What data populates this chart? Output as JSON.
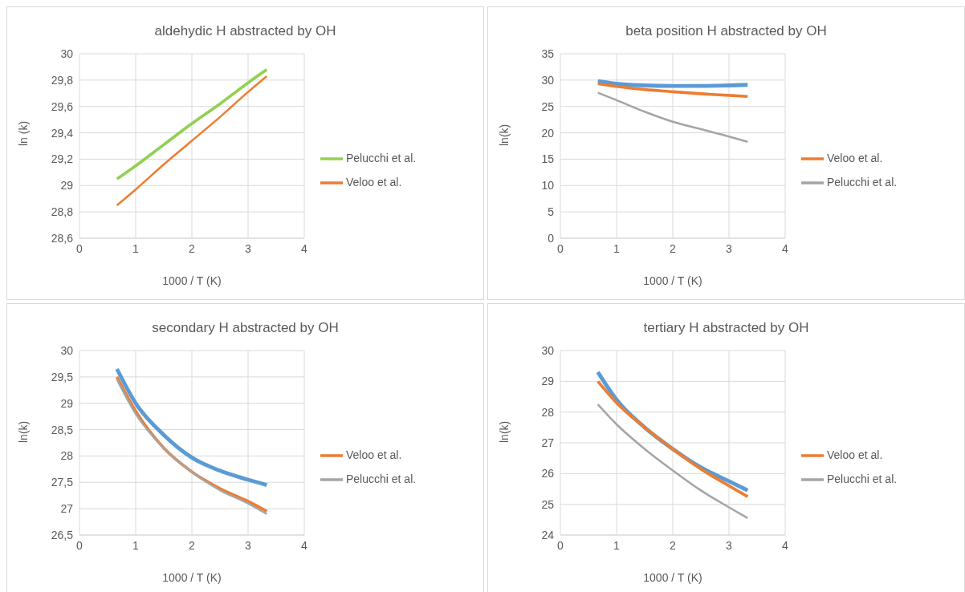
{
  "chart_data": [
    {
      "type": "line",
      "title": "aldehydic H abstracted by OH",
      "xlabel": "1000 / T (K)",
      "ylabel": "ln (k)",
      "x": [
        0.667,
        1,
        1.5,
        2,
        2.5,
        3,
        3.333
      ],
      "xlim": [
        0,
        4
      ],
      "xticks": [
        0,
        1,
        2,
        3,
        4
      ],
      "ylim": [
        28.6,
        30
      ],
      "yticks": [
        {
          "value": 28.6,
          "label": "28,6"
        },
        {
          "value": 28.8,
          "label": "28,8"
        },
        {
          "value": 29,
          "label": "29"
        },
        {
          "value": 29.2,
          "label": "29,2"
        },
        {
          "value": 29.4,
          "label": "29,4"
        },
        {
          "value": 29.6,
          "label": "29,6"
        },
        {
          "value": 29.8,
          "label": "29,8"
        },
        {
          "value": 30,
          "label": "30"
        }
      ],
      "grid": true,
      "legend": "right",
      "marker": "none",
      "line_style": "solid",
      "series": [
        {
          "name": "Pelucchi et al.",
          "color": "#92d050",
          "values": [
            29.05,
            29.15,
            29.31,
            29.47,
            29.62,
            29.78,
            29.88
          ]
        },
        {
          "name": "Veloo et al.",
          "color": "#ed7d31",
          "values": [
            28.85,
            28.97,
            29.16,
            29.34,
            29.52,
            29.71,
            29.83
          ]
        }
      ]
    },
    {
      "type": "line",
      "title": "beta position H abstracted by OH",
      "xlabel": "1000 / T (K)",
      "ylabel": "ln(k)",
      "x": [
        0.667,
        1,
        1.5,
        2,
        2.5,
        3,
        3.333
      ],
      "xlim": [
        0,
        4
      ],
      "xticks": [
        0,
        1,
        2,
        3,
        4
      ],
      "ylim": [
        0,
        35
      ],
      "yticks": [
        0,
        5,
        10,
        15,
        20,
        25,
        30,
        35
      ],
      "grid": true,
      "legend": "right",
      "marker": "none",
      "line_style": "solid",
      "series": [
        {
          "color": "#5b9bd5",
          "values": [
            29.8,
            29.3,
            29.0,
            28.9,
            28.9,
            29.0,
            29.1
          ]
        },
        {
          "name": "Veloo et al.",
          "color": "#ed7d31",
          "values": [
            29.3,
            28.8,
            28.2,
            27.8,
            27.4,
            27.1,
            26.9
          ]
        },
        {
          "name": "Pelucchi et al.",
          "color": "#a5a5a5",
          "values": [
            27.6,
            26.2,
            24.0,
            22.1,
            20.7,
            19.3,
            18.3
          ]
        }
      ]
    },
    {
      "type": "line",
      "title": "secondary H abstracted by OH",
      "xlabel": "1000 / T (K)",
      "ylabel": "ln(k)",
      "x": [
        0.667,
        1,
        1.5,
        2,
        2.5,
        3,
        3.333
      ],
      "xlim": [
        0,
        4
      ],
      "xticks": [
        0,
        1,
        2,
        3,
        4
      ],
      "ylim": [
        26.5,
        30
      ],
      "yticks": [
        {
          "value": 26.5,
          "label": "26,5"
        },
        27,
        {
          "value": 27.5,
          "label": "27,5"
        },
        28,
        {
          "value": 28.5,
          "label": "28,5"
        },
        29,
        {
          "value": 29.5,
          "label": "29,5"
        },
        30
      ],
      "grid": true,
      "legend": "right",
      "marker": "none",
      "line_style": "solid",
      "series": [
        {
          "color": "#5b9bd5",
          "values": [
            29.65,
            29.0,
            28.4,
            27.97,
            27.72,
            27.55,
            27.45
          ]
        },
        {
          "name": "Veloo et al.",
          "color": "#ed7d31",
          "values": [
            29.5,
            28.85,
            28.15,
            27.7,
            27.38,
            27.14,
            26.95
          ]
        },
        {
          "name": "Pelucchi et al.",
          "color": "#a5a5a5",
          "values": [
            29.45,
            28.8,
            28.15,
            27.7,
            27.35,
            27.1,
            26.9
          ]
        }
      ]
    },
    {
      "type": "line",
      "title": "tertiary H abstracted by OH",
      "xlabel": "1000 / T (K)",
      "ylabel": "ln(k)",
      "x": [
        0.667,
        1,
        1.5,
        2,
        2.5,
        3,
        3.333
      ],
      "xlim": [
        0,
        4
      ],
      "xticks": [
        0,
        1,
        2,
        3,
        4
      ],
      "ylim": [
        24,
        30
      ],
      "yticks": [
        24,
        25,
        26,
        27,
        28,
        29,
        30
      ],
      "grid": true,
      "legend": "right",
      "marker": "none",
      "line_style": "solid",
      "series": [
        {
          "color": "#5b9bd5",
          "values": [
            29.3,
            28.4,
            27.5,
            26.8,
            26.2,
            25.75,
            25.45
          ]
        },
        {
          "name": "Veloo et al.",
          "color": "#ed7d31",
          "values": [
            29.0,
            28.3,
            27.5,
            26.8,
            26.15,
            25.6,
            25.25
          ]
        },
        {
          "name": "Pelucchi et al.",
          "color": "#a5a5a5",
          "values": [
            28.25,
            27.6,
            26.8,
            26.1,
            25.45,
            24.9,
            24.55
          ]
        }
      ]
    }
  ]
}
